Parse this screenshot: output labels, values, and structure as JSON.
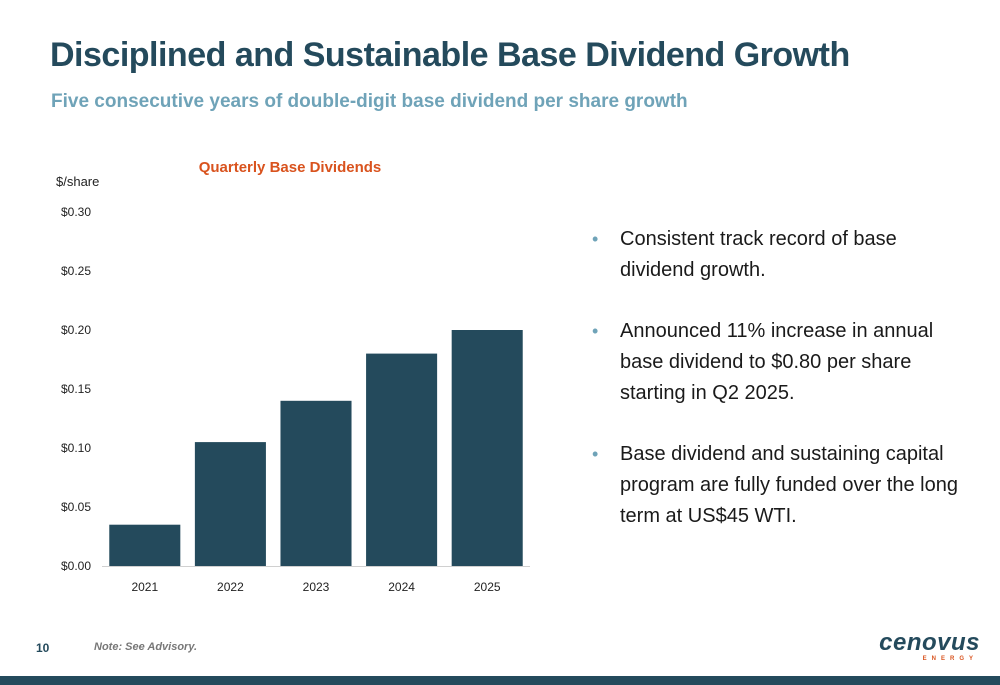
{
  "slide": {
    "title": "Disciplined and Sustainable Base Dividend Growth",
    "subtitle": "Five consecutive years of double-digit base dividend per share growth"
  },
  "chart_data": {
    "type": "bar",
    "title": "Quarterly Base Dividends",
    "ylabel": "$/share",
    "xlabel": "",
    "categories": [
      "2021",
      "2022",
      "2023",
      "2024",
      "2025"
    ],
    "values": [
      0.035,
      0.105,
      0.14,
      0.18,
      0.2
    ],
    "ylim": [
      0,
      0.3
    ],
    "yticks": [
      "$0.00",
      "$0.05",
      "$0.10",
      "$0.15",
      "$0.20",
      "$0.25",
      "$0.30"
    ],
    "ytick_values": [
      0,
      0.05,
      0.1,
      0.15,
      0.2,
      0.25,
      0.3
    ],
    "grid": false,
    "bar_color": "#244a5c"
  },
  "bullets": [
    "Consistent track record of base dividend growth.",
    "Announced 11% increase in annual base dividend to $0.80 per share starting in Q2 2025.",
    "Base dividend and sustaining capital program are fully funded over the long term at US$45 WTI."
  ],
  "bullet_symbol": "•",
  "footer": {
    "page_number": "10",
    "note": "Note: See Advisory."
  },
  "logo": {
    "word": "cenovus",
    "sub": "ENERGY"
  },
  "colors": {
    "title": "#244a5c",
    "subtitle": "#6fa3b8",
    "chart_title": "#d9531e",
    "accent_bar": "#244a5c"
  }
}
